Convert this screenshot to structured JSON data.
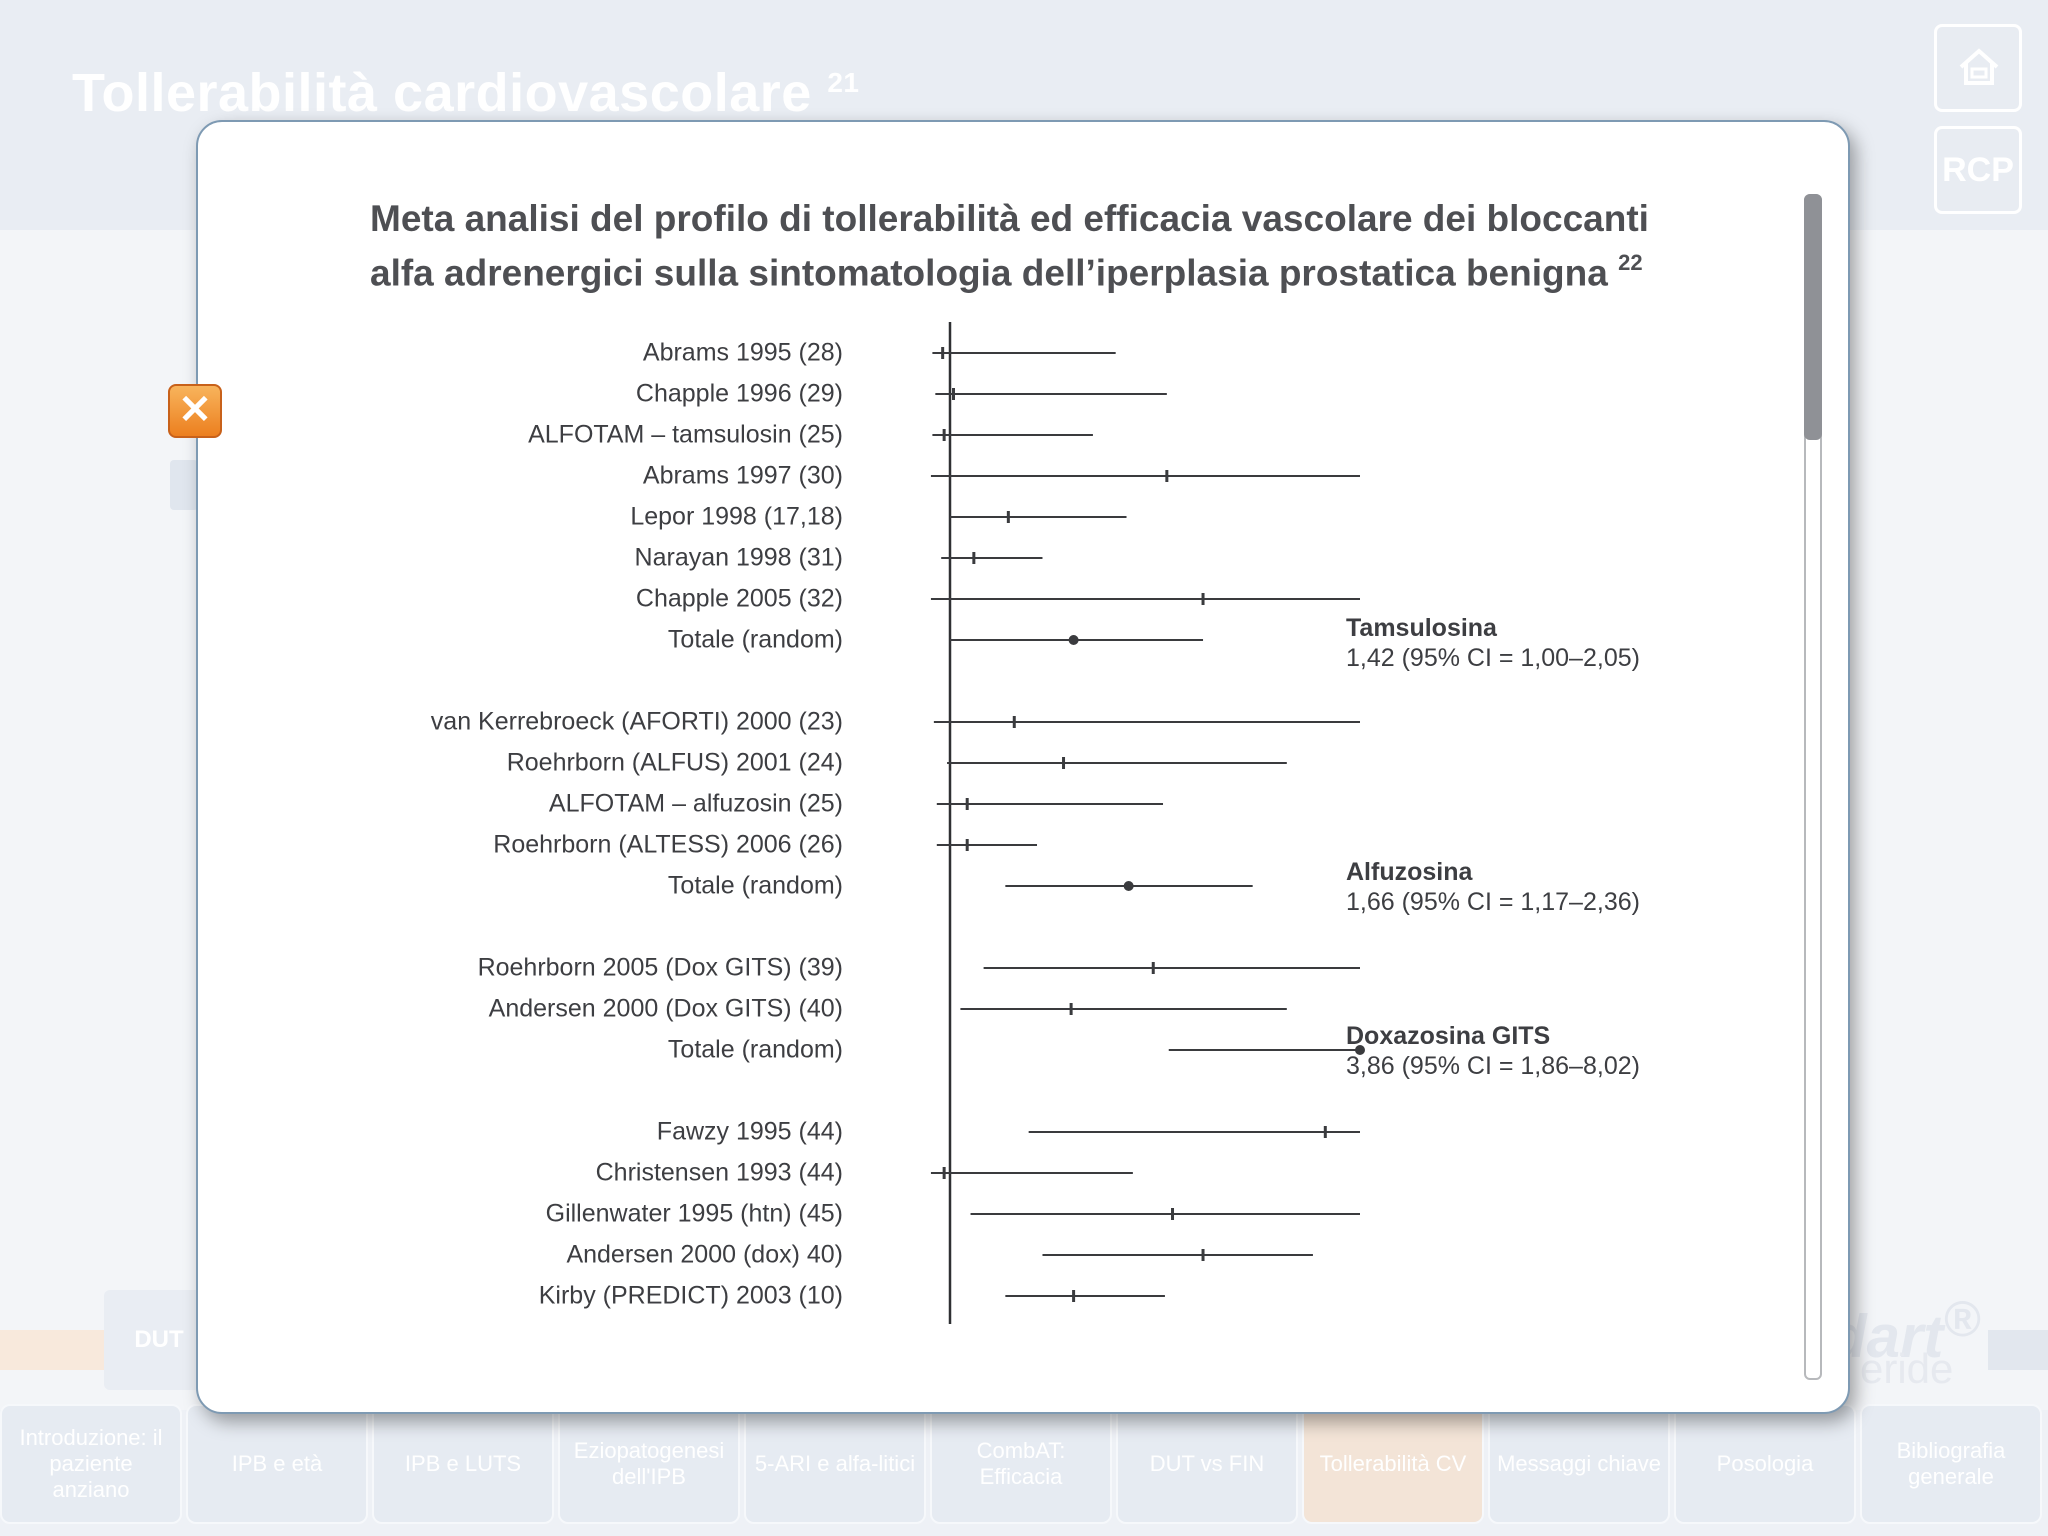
{
  "background": {
    "title": "Tollerabilità cardiovascolare",
    "title_ref": "21",
    "home_icon": "home-icon",
    "rcp_label": "RCP",
    "dut_label": "DUT",
    "logo_text": "dart",
    "logo_sub": "eride",
    "logo_mark": "®"
  },
  "nav": {
    "tabs": [
      {
        "label": "Introduzione: il paziente anziano",
        "active": false
      },
      {
        "label": "IPB e età",
        "active": false
      },
      {
        "label": "IPB e LUTS",
        "active": false
      },
      {
        "label": "Eziopatogenesi dell'IPB",
        "active": false
      },
      {
        "label": "5-ARI e alfa-litici",
        "active": false
      },
      {
        "label": "CombAT: Efficacia",
        "active": false
      },
      {
        "label": "DUT vs FIN",
        "active": false
      },
      {
        "label": "Tollerabilità CV",
        "active": true
      },
      {
        "label": "Messaggi chiave",
        "active": false
      },
      {
        "label": "Posologia",
        "active": false
      },
      {
        "label": "Bibliografia generale",
        "active": false
      }
    ]
  },
  "modal": {
    "close_icon": "close-icon",
    "heading_line1": "Meta analisi del profilo di tollerabilità ed efficacia vascolare dei bloccanti",
    "heading_line2": "alfa adrenergici sulla sintomatologia dell’iperplasia prostatica benigna",
    "heading_ref": "22"
  },
  "forest": {
    "groups": [
      {
        "title": "Tamsulosina",
        "value": "1,42 (95% CI = 1,00–2,05)"
      },
      {
        "title": "Alfuzosina",
        "value": "1,66 (95% CI = 1,17–2,36)"
      },
      {
        "title": "Doxazosina GITS",
        "value": "3,86 (95% CI = 1,86–8,02)"
      }
    ],
    "rows": [
      {
        "label": "Abrams 1995 (28)",
        "lo": 0.88,
        "pt": 0.95,
        "hi": 1.6
      },
      {
        "label": "Chapple 1996 (29)",
        "lo": 0.9,
        "pt": 1.01,
        "hi": 1.85
      },
      {
        "label": "ALFOTAM – tamsulosin (25)",
        "lo": 0.88,
        "pt": 0.96,
        "hi": 1.5
      },
      {
        "label": "Abrams 1997 (30)",
        "lo": 0.87,
        "pt": 1.85,
        "hi": 3.2
      },
      {
        "label": "Lepor 1998 (17,18)",
        "lo": 1.0,
        "pt": 1.18,
        "hi": 1.65
      },
      {
        "label": "Narayan 1998 (31)",
        "lo": 0.94,
        "pt": 1.07,
        "hi": 1.3
      },
      {
        "label": "Chapple 2005 (32)",
        "lo": 0.87,
        "pt": 2.05,
        "hi": 3.2
      },
      {
        "label": "Totale (random)",
        "lo": 1.0,
        "pt": 1.42,
        "hi": 2.05,
        "summary": true
      },
      {
        "label": "van Kerrebroeck (AFORTI) 2000 (23)",
        "lo": 0.89,
        "pt": 1.2,
        "hi": 3.2
      },
      {
        "label": "Roehrborn (ALFUS) 2001 (24)",
        "lo": 0.98,
        "pt": 1.38,
        "hi": 2.6
      },
      {
        "label": "ALFOTAM – alfuzosin (25)",
        "lo": 0.91,
        "pt": 1.05,
        "hi": 1.83
      },
      {
        "label": "Roehrborn (ALTESS) 2006 (26)",
        "lo": 0.91,
        "pt": 1.05,
        "hi": 1.28
      },
      {
        "label": "Totale (random)",
        "lo": 1.17,
        "pt": 1.66,
        "hi": 2.36,
        "summary": true
      },
      {
        "label": "Roehrborn 2005 (Dox GITS) (39)",
        "lo": 1.1,
        "pt": 1.78,
        "hi": 3.2
      },
      {
        "label": "Andersen 2000 (Dox GITS) (40)",
        "lo": 1.03,
        "pt": 1.41,
        "hi": 2.6
      },
      {
        "label": "Totale (random)",
        "lo": 1.86,
        "pt": 3.86,
        "hi": 8.02,
        "summary": true
      },
      {
        "label": "Fawzy 1995 (44)",
        "lo": 1.25,
        "pt": 2.9,
        "hi": 3.2
      },
      {
        "label": "Christensen 1993 (44)",
        "lo": 0.87,
        "pt": 0.96,
        "hi": 1.68
      },
      {
        "label": "Gillenwater 1995 (htn) (45)",
        "lo": 1.06,
        "pt": 1.88,
        "hi": 3.2
      },
      {
        "label": "Andersen 2000 (dox) 40)",
        "lo": 1.3,
        "pt": 2.05,
        "hi": 2.8
      },
      {
        "label": "Kirby (PREDICT) 2003 (10)",
        "lo": 1.17,
        "pt": 1.42,
        "hi": 1.84
      }
    ]
  }
}
